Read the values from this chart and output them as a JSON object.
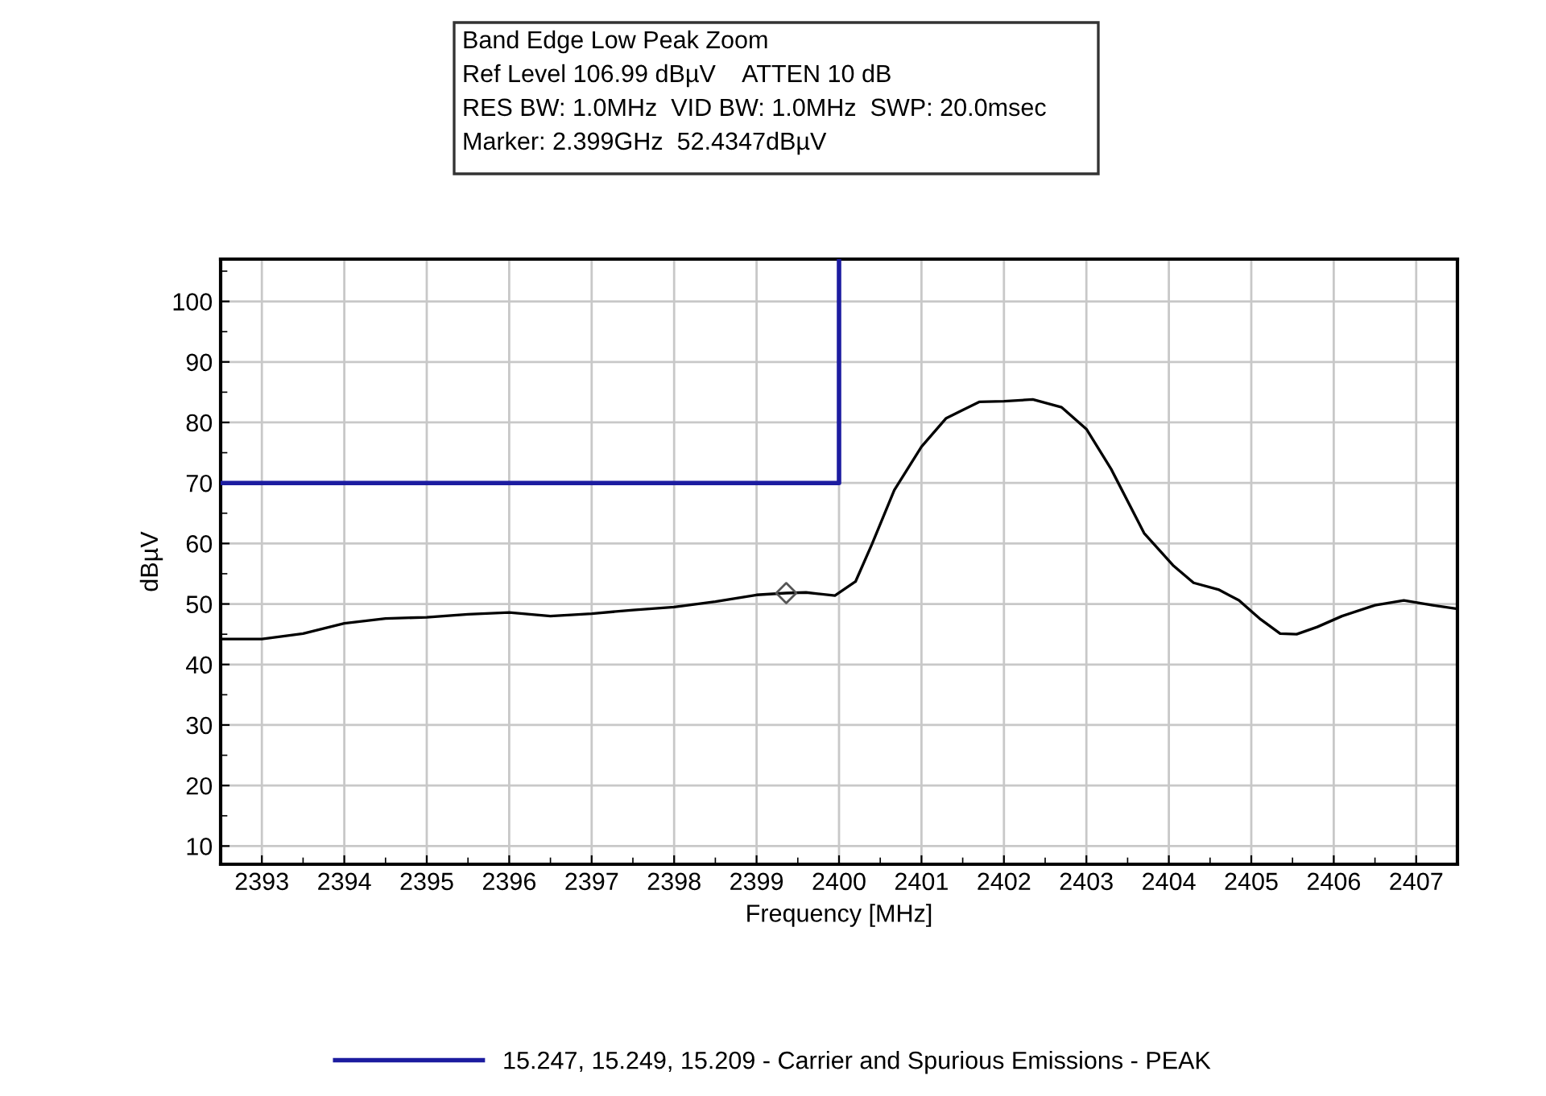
{
  "chart_data": {
    "type": "line",
    "title": "Band Edge Low Peak Zoom",
    "annotations": [
      "Ref Level 106.99 dBµV    ATTEN 10 dB",
      "RES BW: 1.0MHz  VID BW: 1.0MHz  SWP: 20.0msec",
      "Marker: 2.399GHz  52.4347dBµV"
    ],
    "xlabel": "Frequency [MHz]",
    "ylabel": "dBµV",
    "xlim": [
      2392.5,
      2407.5
    ],
    "xticks": [
      2393,
      2394,
      2395,
      2396,
      2397,
      2398,
      2399,
      2400,
      2401,
      2402,
      2403,
      2404,
      2405,
      2406,
      2407
    ],
    "ylim": [
      6.99,
      106.99
    ],
    "yticks": [
      10,
      20,
      30,
      40,
      50,
      60,
      70,
      80,
      90,
      100
    ],
    "grid": true,
    "legend": "bottom",
    "series": [
      {
        "color": "#000000",
        "marker": "none",
        "x": [
          2392.5,
          2393,
          2393.5,
          2394,
          2394.5,
          2395,
          2395.5,
          2396,
          2396.5,
          2397,
          2397.5,
          2398,
          2398.5,
          2399,
          2399.36,
          2399.6,
          2399.95,
          2400.2,
          2400.4,
          2400.67,
          2401,
          2401.3,
          2401.7,
          2402,
          2402.35,
          2402.7,
          2403,
          2403.3,
          2403.7,
          2404.05,
          2404.3,
          2404.6,
          2404.85,
          2405.1,
          2405.35,
          2405.55,
          2405.8,
          2406.1,
          2406.5,
          2406.85,
          2407.2,
          2407.5
        ],
        "values": [
          44.2,
          44.2,
          45.1,
          46.8,
          47.6,
          47.8,
          48.3,
          48.6,
          48.0,
          48.4,
          49.0,
          49.5,
          50.4,
          51.5,
          51.8,
          51.9,
          51.4,
          53.7,
          59.9,
          68.8,
          76.0,
          80.7,
          83.4,
          83.5,
          83.8,
          82.5,
          78.9,
          72.3,
          61.7,
          56.4,
          53.5,
          52.4,
          50.6,
          47.6,
          45.1,
          45.0,
          46.2,
          48.0,
          49.8,
          50.6,
          49.8,
          49.2
        ]
      },
      {
        "name": "15.247, 15.249, 15.209 - Carrier and Spurious Emissions - PEAK",
        "color": "#1c1ca0",
        "marker": "none",
        "x": [
          2392.5,
          2400,
          2400
        ],
        "values": [
          70,
          70,
          106.99
        ]
      },
      {
        "type": "scatter",
        "color": "#555555",
        "marker": "diamond",
        "x": [
          2399.36
        ],
        "values": [
          51.8
        ]
      }
    ]
  }
}
